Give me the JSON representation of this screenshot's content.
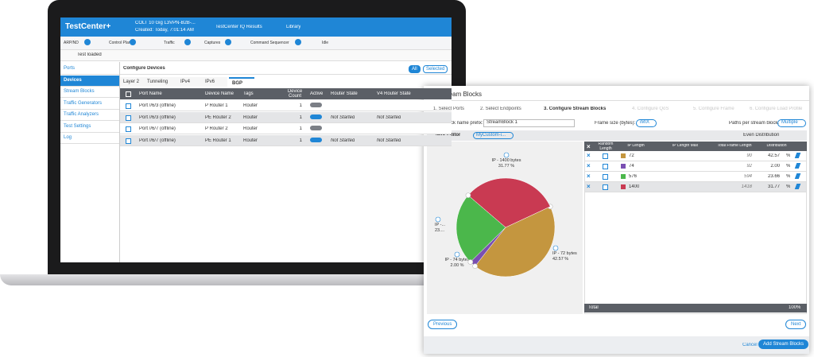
{
  "header": {
    "logo": "TestCenter+",
    "config_name": "COLT 10 Gig L3VPN-B2B-...",
    "created": "Created: Today, 7:01:14 AM",
    "results": "TestCenter IQ Results",
    "library": "Library"
  },
  "toolbar": [
    "ARP/ND",
    "Control Plane",
    "Traffic",
    "Captures",
    "Command Sequencer",
    "Idle"
  ],
  "status": "Test loaded",
  "sidebar": {
    "items": [
      "Ports",
      "Devices",
      "Stream Blocks",
      "Traffic Generators",
      "Traffic Analyzers",
      "Test Settings",
      "Log"
    ],
    "selected": 1
  },
  "devices": {
    "title": "Configure Devices",
    "filters": [
      "All",
      "Selected"
    ],
    "tabs": [
      "Layer 2",
      "Tunneling",
      "IPv4",
      "IPv6",
      "BGP"
    ],
    "selected_tab": 4,
    "columns": [
      "Port Name",
      "Device Name",
      "Tags",
      "Device Count",
      "Active",
      "Router State",
      "V4 Router State"
    ],
    "rows": [
      {
        "port": "Port //6/3 (offline)",
        "device": "P Router 1",
        "tags": "Router",
        "count": 1,
        "active": false
      },
      {
        "port": "Port //6/3 (offline)",
        "device": "PE Router 2",
        "tags": "Router",
        "count": 1,
        "active": true,
        "router_state": "Not Started",
        "v4_state": "Not Started"
      },
      {
        "port": "Port //6/7 (offline)",
        "device": "P Router 2",
        "tags": "Router",
        "count": 1,
        "active": false
      },
      {
        "port": "Port //6/7 (offline)",
        "device": "PE Router 1",
        "tags": "Router",
        "count": 1,
        "active": true,
        "router_state": "Not Started",
        "v4_state": "Not Started"
      }
    ]
  },
  "dialog": {
    "title": "Add Stream Blocks",
    "steps": [
      "1. Select Ports",
      "2. Select Endpoints",
      "3. Configure Stream Blocks",
      "4. Configure QoS",
      "5. Configure Frame",
      "6. Configure Load Profile"
    ],
    "current_step": 2,
    "name_prefix_label": "Stream block name prefix:",
    "name_prefix": "StreamBlock 1",
    "frame_size_label": "Frame size (bytes):",
    "frame_size": "iMIX",
    "paths_label": "Paths per stream block:",
    "paths": "Multiple",
    "editor_title": "iMIX Editor",
    "preset": "MyCustom-i...",
    "even_distribution": "Even Distribution",
    "columns": [
      "Random Length",
      "IP Length",
      "IP Length Max",
      "Total Frame Length",
      "Distribution"
    ],
    "unit": "%",
    "rows": [
      {
        "color": "#c4963f",
        "ip_length": 72,
        "total_frame_length": 90,
        "distribution": 42.57,
        "pie_label": [
          "IP - 72 bytes",
          "42.57 %"
        ]
      },
      {
        "color": "#7a4fb2",
        "ip_length": 74,
        "total_frame_length": 92,
        "distribution": 2,
        "distribution_label": "2.00",
        "pie_label": [
          "IP - 74 bytes",
          "2.00 %"
        ]
      },
      {
        "color": "#4bb74b",
        "ip_length": 576,
        "total_frame_length": 594,
        "distribution": 23.66,
        "pie_label": [
          "IP -...",
          "23...."
        ]
      },
      {
        "color": "#c93a52",
        "ip_length": 1400,
        "total_frame_length": 1418,
        "distribution": 31.77,
        "pie_label": [
          "IP - 1400 bytes",
          "31.77 %"
        ]
      }
    ],
    "total_label": "Total",
    "total": "100%",
    "previous": "Previous",
    "next": "Next",
    "cancel": "Cancel",
    "submit": "Add Stream Blocks"
  }
}
